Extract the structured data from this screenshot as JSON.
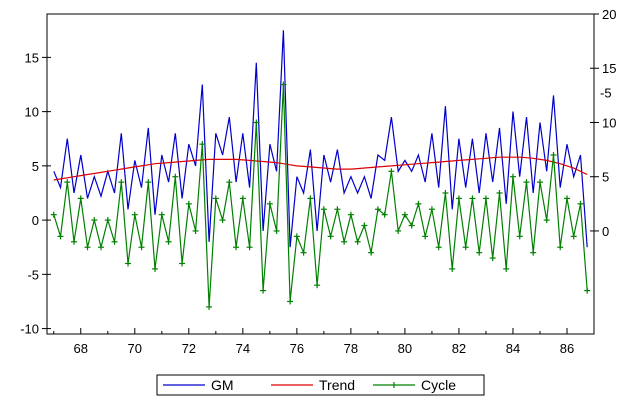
{
  "chart_data": {
    "type": "line",
    "x": [
      67.0,
      67.25,
      67.5,
      67.75,
      68.0,
      68.25,
      68.5,
      68.75,
      69.0,
      69.25,
      69.5,
      69.75,
      70.0,
      70.25,
      70.5,
      70.75,
      71.0,
      71.25,
      71.5,
      71.75,
      72.0,
      72.25,
      72.5,
      72.75,
      73.0,
      73.25,
      73.5,
      73.75,
      74.0,
      74.25,
      74.5,
      74.75,
      75.0,
      75.25,
      75.5,
      75.75,
      76.0,
      76.25,
      76.5,
      76.75,
      77.0,
      77.25,
      77.5,
      77.75,
      78.0,
      78.25,
      78.5,
      78.75,
      79.0,
      79.25,
      79.5,
      79.75,
      80.0,
      80.25,
      80.5,
      80.75,
      81.0,
      81.25,
      81.5,
      81.75,
      82.0,
      82.25,
      82.5,
      82.75,
      83.0,
      83.25,
      83.5,
      83.75,
      84.0,
      84.25,
      84.5,
      84.75,
      85.0,
      85.25,
      85.5,
      85.75,
      86.0,
      86.25,
      86.5,
      86.75
    ],
    "right_axis": {
      "ticks": [
        0,
        5,
        10,
        15,
        20
      ],
      "range": [
        -9.5,
        20
      ]
    },
    "left_axis": {
      "ticks": [
        -10,
        -5,
        0,
        5,
        10,
        15
      ],
      "range": [
        -10.5,
        19
      ]
    },
    "x_axis": {
      "ticks": [
        68,
        70,
        72,
        74,
        76,
        78,
        80,
        82,
        84,
        86
      ],
      "range": [
        66.75,
        87.0
      ]
    },
    "right_extra_ticks": [
      "-5"
    ],
    "series": [
      {
        "name": "GM",
        "axis": "right",
        "color": "#0000cc",
        "values": [
          5.5,
          4.0,
          8.5,
          3.5,
          7.0,
          3.0,
          5.0,
          3.2,
          5.5,
          3.5,
          9.0,
          2.0,
          6.5,
          4.0,
          9.5,
          1.5,
          7.0,
          4.5,
          9.0,
          3.0,
          8.0,
          6.0,
          13.5,
          -1.0,
          9.0,
          7.0,
          10.5,
          4.5,
          9.0,
          4.0,
          15.5,
          0.0,
          8.0,
          5.5,
          18.5,
          -1.5,
          5.0,
          3.5,
          7.5,
          0.0,
          7.0,
          4.5,
          7.5,
          3.5,
          5.0,
          3.5,
          5.0,
          3.0,
          7.0,
          6.5,
          10.5,
          5.5,
          6.5,
          5.5,
          7.0,
          4.5,
          9.0,
          4.0,
          11.5,
          2.0,
          8.5,
          4.0,
          8.5,
          3.5,
          9.0,
          4.5,
          9.5,
          2.5,
          11.0,
          5.0,
          10.5,
          3.5,
          10.0,
          5.5,
          12.5,
          4.0,
          8.0,
          5.0,
          7.0,
          -1.5
        ]
      },
      {
        "name": "Trend",
        "axis": "right",
        "color": "#dd0000",
        "values": [
          4.7,
          4.8,
          4.9,
          5.0,
          5.1,
          5.2,
          5.3,
          5.4,
          5.5,
          5.6,
          5.7,
          5.8,
          5.9,
          6.0,
          6.1,
          6.2,
          6.25,
          6.3,
          6.35,
          6.4,
          6.45,
          6.5,
          6.55,
          6.6,
          6.6,
          6.6,
          6.6,
          6.6,
          6.55,
          6.5,
          6.45,
          6.4,
          6.35,
          6.3,
          6.2,
          6.1,
          6.0,
          5.95,
          5.9,
          5.85,
          5.8,
          5.75,
          5.7,
          5.7,
          5.7,
          5.75,
          5.8,
          5.85,
          5.9,
          5.95,
          6.0,
          6.05,
          6.1,
          6.15,
          6.2,
          6.25,
          6.3,
          6.35,
          6.4,
          6.45,
          6.5,
          6.55,
          6.6,
          6.65,
          6.7,
          6.75,
          6.8,
          6.8,
          6.8,
          6.8,
          6.75,
          6.7,
          6.6,
          6.5,
          6.35,
          6.2,
          6.0,
          5.8,
          5.5,
          5.2
        ]
      },
      {
        "name": "Cycle",
        "axis": "left",
        "color": "#008000",
        "values": [
          0.5,
          -1.5,
          3.5,
          -2.0,
          2.0,
          -2.5,
          0.0,
          -2.5,
          0.0,
          -2.0,
          3.5,
          -4.0,
          0.5,
          -2.5,
          3.5,
          -4.5,
          0.5,
          -2.0,
          4.0,
          -4.0,
          1.5,
          -1.0,
          7.0,
          -8.0,
          2.0,
          0.0,
          3.5,
          -2.5,
          2.0,
          -2.5,
          9.0,
          -6.5,
          1.5,
          -1.0,
          12.5,
          -7.5,
          -1.5,
          -3.0,
          2.0,
          -6.0,
          1.0,
          -1.5,
          1.0,
          -2.0,
          0.5,
          -2.0,
          -0.5,
          -3.0,
          1.0,
          0.5,
          4.5,
          -1.0,
          0.5,
          -0.5,
          1.5,
          -1.5,
          1.0,
          -2.5,
          2.5,
          -4.5,
          2.0,
          -2.5,
          2.0,
          -3.0,
          2.0,
          -3.5,
          2.5,
          -4.5,
          4.0,
          -1.5,
          3.5,
          -3.0,
          3.5,
          0.0,
          6.0,
          -2.5,
          2.0,
          -1.5,
          1.5,
          -6.5
        ]
      }
    ]
  }
}
